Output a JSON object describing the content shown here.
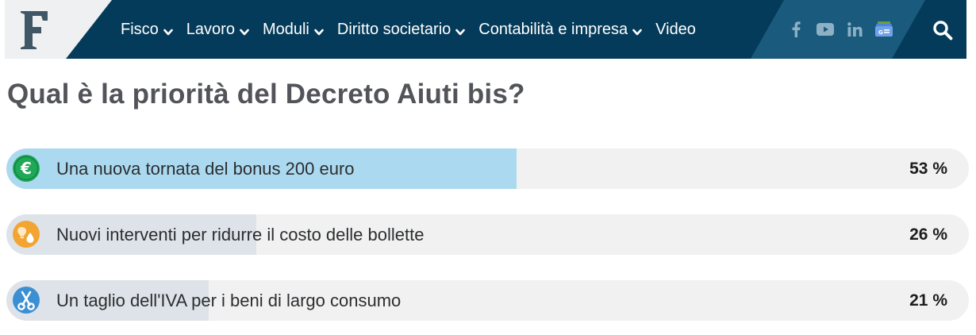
{
  "navbar": {
    "logo_letter": "F",
    "menu": [
      {
        "label": "Fisco",
        "has_dropdown": true
      },
      {
        "label": "Lavoro",
        "has_dropdown": true
      },
      {
        "label": "Moduli",
        "has_dropdown": true
      },
      {
        "label": "Diritto societario",
        "has_dropdown": true
      },
      {
        "label": "Contabilità e impresa",
        "has_dropdown": true
      },
      {
        "label": "Video",
        "has_dropdown": false
      }
    ],
    "social": [
      "facebook-icon",
      "youtube-icon",
      "linkedin-icon",
      "google-news-icon"
    ],
    "colors": {
      "bar": "#053b5a",
      "social_band": "#1a5a7c",
      "logo_bg": "#eef0f1"
    }
  },
  "poll": {
    "question": "Qual è la priorità del Decreto Aiuti bis?",
    "options": [
      {
        "label": "Una nuova tornata del bonus 200 euro",
        "percent_text": "53 %",
        "percent": 53,
        "icon": "euro-icon",
        "icon_color": "#1fa857",
        "fill_color": "#abd9ef"
      },
      {
        "label": "Nuovi interventi per ridurre il costo delle bollette",
        "percent_text": "26 %",
        "percent": 26,
        "icon": "bulb-icon",
        "icon_color": "#f2a532",
        "fill_color": "#dde3e8"
      },
      {
        "label": "Un taglio dell'IVA per i beni di largo consumo",
        "percent_text": "21 %",
        "percent": 21,
        "icon": "scissors-icon",
        "icon_color": "#3c8fd2",
        "fill_color": "#dde3e8"
      }
    ]
  }
}
